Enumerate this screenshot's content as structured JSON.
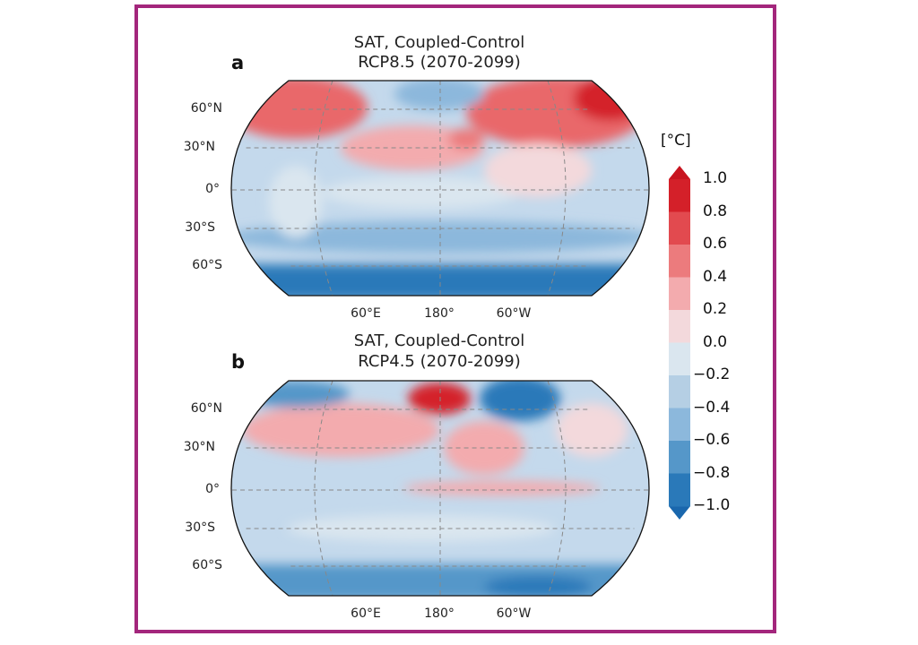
{
  "panels": [
    {
      "label": "a",
      "title_line1": "SAT, Coupled-Control",
      "title_line2": "RCP8.5 (2070-2099)",
      "lat_labels": [
        "60°N",
        "30°N",
        "0°",
        "30°S",
        "60°S"
      ],
      "lon_labels": [
        "60°E",
        "180°",
        "60°W"
      ]
    },
    {
      "label": "b",
      "title_line1": "SAT, Coupled-Control",
      "title_line2": "RCP4.5 (2070-2099)",
      "lat_labels": [
        "60°N",
        "30°N",
        "0°",
        "30°S",
        "60°S"
      ],
      "lon_labels": [
        "60°E",
        "180°",
        "60°W"
      ]
    }
  ],
  "colorbar": {
    "unit": "[°C]",
    "ticks": [
      "1.0",
      "0.8",
      "0.6",
      "0.4",
      "0.2",
      "0.0",
      "−0.2",
      "−0.4",
      "−0.6",
      "−0.8",
      "−1.0"
    ],
    "range": [
      -1.0,
      1.0
    ],
    "extend": "both",
    "colors": [
      "#d42029",
      "#e24a4f",
      "#ec7b7d",
      "#f3abae",
      "#f3d9dc",
      "#dae6ef",
      "#b5cfe4",
      "#8cb8dc",
      "#5597c9",
      "#2a79b9"
    ],
    "over_color": "#c8141f",
    "under_color": "#1a67ad"
  },
  "colors": {
    "frame": "#a3267c",
    "map_base": "#c4d9ec"
  }
}
